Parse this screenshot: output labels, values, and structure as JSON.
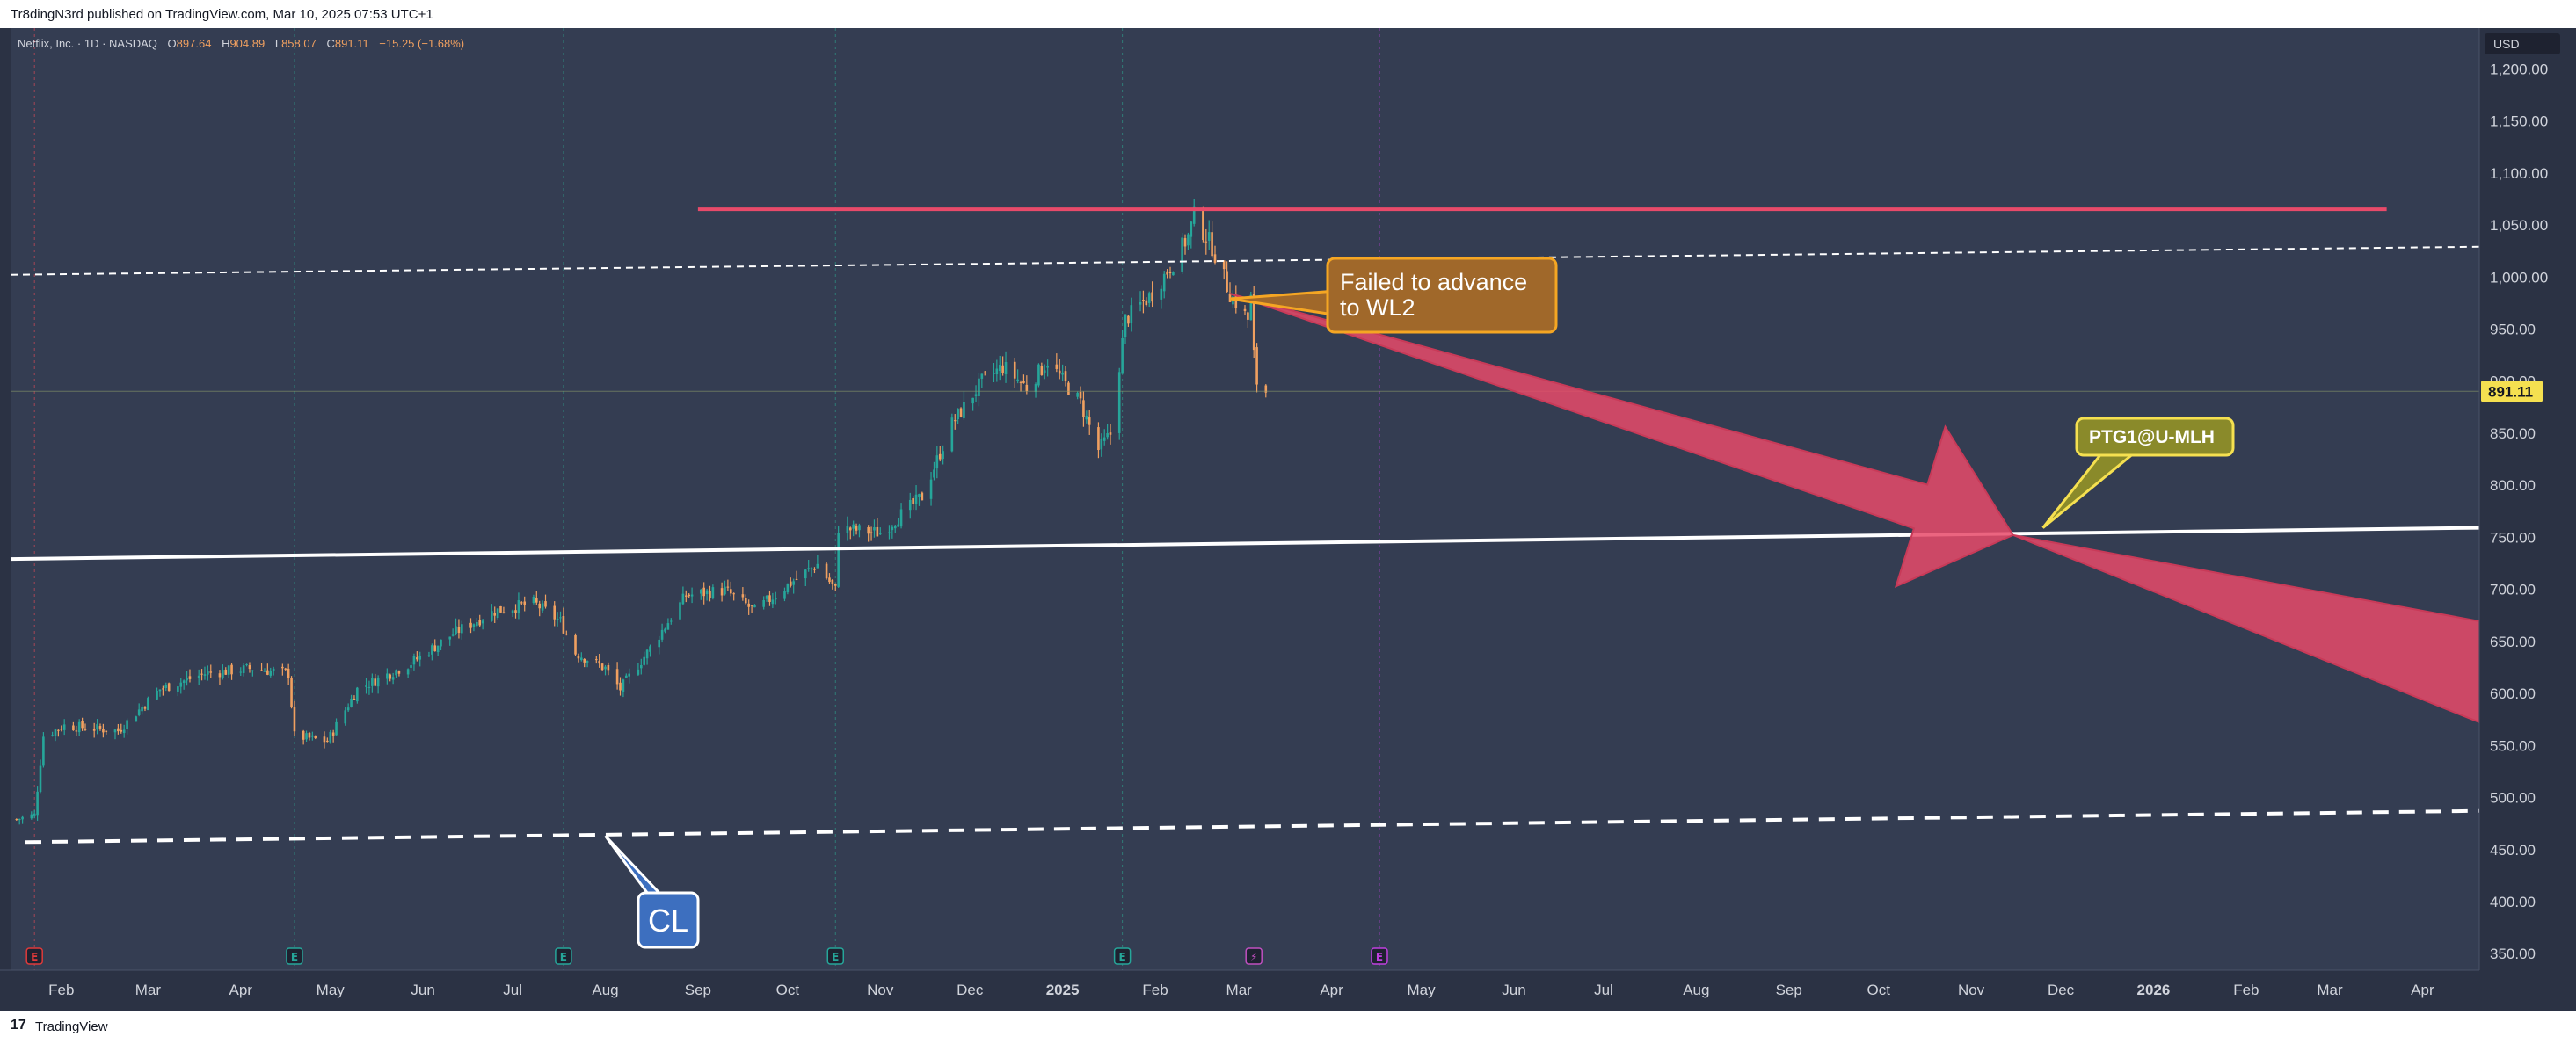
{
  "header": {
    "publisher_line": "Tr8dingN3rd published on TradingView.com, Mar 10, 2025 07:53 UTC+1"
  },
  "legend": {
    "symbol": "Netflix, Inc. · 1D · NASDAQ",
    "o_label": "O",
    "o_value": "897.64",
    "h_label": "H",
    "h_value": "904.89",
    "l_label": "L",
    "l_value": "858.07",
    "c_label": "C",
    "c_value": "891.11",
    "change": "−15.25 (−1.68%)"
  },
  "footer": {
    "brand": "TradingView",
    "logo_glyph": "17"
  },
  "colors": {
    "background": "#343d52",
    "up": "#26a69a",
    "down": "#f0a060",
    "resistance": "#e84a6a",
    "callout_orange_fill": "#a0682a",
    "callout_orange_border": "#f5a623",
    "callout_yellow_fill": "#8a8a2a",
    "callout_yellow_border": "#f5e050",
    "callout_blue_fill": "#3d6fbf"
  },
  "chart_data": {
    "type": "candlestick",
    "currency": "USD",
    "last_price": 891.11,
    "ylim": [
      335,
      1240
    ],
    "y_ticks": [
      350,
      400,
      450,
      500,
      550,
      600,
      650,
      700,
      750,
      800,
      850,
      900,
      950,
      1000,
      1050,
      1100,
      1150,
      1200
    ],
    "y_tick_labels": [
      "350.00",
      "400.00",
      "450.00",
      "500.00",
      "550.00",
      "600.00",
      "650.00",
      "700.00",
      "750.00",
      "800.00",
      "850.00",
      "900.00",
      "950.00",
      "1,000.00",
      "1,050.00",
      "1,100.00",
      "1,150.00",
      "1,200.00"
    ],
    "x_range": [
      "2024-01-15",
      "2026-04-20"
    ],
    "x_ticks": [
      {
        "date": "2024-02-01",
        "label": "Feb"
      },
      {
        "date": "2024-03-01",
        "label": "Mar"
      },
      {
        "date": "2024-04-01",
        "label": "Apr"
      },
      {
        "date": "2024-05-01",
        "label": "May"
      },
      {
        "date": "2024-06-01",
        "label": "Jun"
      },
      {
        "date": "2024-07-01",
        "label": "Jul"
      },
      {
        "date": "2024-08-01",
        "label": "Aug"
      },
      {
        "date": "2024-09-01",
        "label": "Sep"
      },
      {
        "date": "2024-10-01",
        "label": "Oct"
      },
      {
        "date": "2024-11-01",
        "label": "Nov"
      },
      {
        "date": "2024-12-01",
        "label": "Dec"
      },
      {
        "date": "2025-01-01",
        "label": "2025",
        "bold": true
      },
      {
        "date": "2025-02-01",
        "label": "Feb"
      },
      {
        "date": "2025-03-01",
        "label": "Mar"
      },
      {
        "date": "2025-04-01",
        "label": "Apr"
      },
      {
        "date": "2025-05-01",
        "label": "May"
      },
      {
        "date": "2025-06-01",
        "label": "Jun"
      },
      {
        "date": "2025-07-01",
        "label": "Jul"
      },
      {
        "date": "2025-08-01",
        "label": "Aug"
      },
      {
        "date": "2025-09-01",
        "label": "Sep"
      },
      {
        "date": "2025-10-01",
        "label": "Oct"
      },
      {
        "date": "2025-11-01",
        "label": "Nov"
      },
      {
        "date": "2025-12-01",
        "label": "Dec"
      },
      {
        "date": "2026-01-01",
        "label": "2026",
        "bold": true
      },
      {
        "date": "2026-02-01",
        "label": "Feb"
      },
      {
        "date": "2026-03-01",
        "label": "Mar"
      },
      {
        "date": "2026-04-01",
        "label": "Apr"
      }
    ],
    "price_path": [
      [
        "2024-01-17",
        480
      ],
      [
        "2024-01-23",
        484
      ],
      [
        "2024-01-26",
        560
      ],
      [
        "2024-02-02",
        570
      ],
      [
        "2024-02-20",
        565
      ],
      [
        "2024-03-05",
        605
      ],
      [
        "2024-03-20",
        620
      ],
      [
        "2024-04-05",
        625
      ],
      [
        "2024-04-17",
        620
      ],
      [
        "2024-04-19",
        560
      ],
      [
        "2024-04-30",
        555
      ],
      [
        "2024-05-10",
        605
      ],
      [
        "2024-05-28",
        630
      ],
      [
        "2024-06-12",
        660
      ],
      [
        "2024-06-25",
        680
      ],
      [
        "2024-07-08",
        688
      ],
      [
        "2024-07-17",
        670
      ],
      [
        "2024-07-22",
        640
      ],
      [
        "2024-08-01",
        625
      ],
      [
        "2024-08-06",
        605
      ],
      [
        "2024-08-15",
        640
      ],
      [
        "2024-08-28",
        695
      ],
      [
        "2024-09-10",
        700
      ],
      [
        "2024-09-20",
        680
      ],
      [
        "2024-10-01",
        705
      ],
      [
        "2024-10-11",
        725
      ],
      [
        "2024-10-17",
        700
      ],
      [
        "2024-10-18",
        760
      ],
      [
        "2024-11-01",
        755
      ],
      [
        "2024-11-15",
        790
      ],
      [
        "2024-11-25",
        860
      ],
      [
        "2024-12-05",
        900
      ],
      [
        "2024-12-12",
        915
      ],
      [
        "2024-12-20",
        895
      ],
      [
        "2024-12-27",
        920
      ],
      [
        "2025-01-07",
        880
      ],
      [
        "2025-01-13",
        835
      ],
      [
        "2025-01-17",
        850
      ],
      [
        "2025-01-22",
        960
      ],
      [
        "2025-01-31",
        985
      ],
      [
        "2025-02-07",
        1015
      ],
      [
        "2025-02-12",
        1040
      ],
      [
        "2025-02-14",
        1060
      ],
      [
        "2025-02-20",
        1030
      ],
      [
        "2025-02-26",
        985
      ],
      [
        "2025-03-04",
        960
      ],
      [
        "2025-03-05",
        980
      ],
      [
        "2025-03-06",
        925
      ],
      [
        "2025-03-07",
        900
      ],
      [
        "2025-03-10",
        891.11
      ]
    ],
    "vertical_markers": [
      "2024-01-23",
      "2024-04-19",
      "2024-07-18",
      "2024-10-17",
      "2025-01-21",
      "2025-04-17"
    ],
    "event_markers": [
      {
        "date": "2024-01-23",
        "glyph": "E",
        "color": "#e03a3a"
      },
      {
        "date": "2024-04-19",
        "glyph": "E",
        "color": "#26a69a"
      },
      {
        "date": "2024-07-18",
        "glyph": "E",
        "color": "#26a69a"
      },
      {
        "date": "2024-10-17",
        "glyph": "E",
        "color": "#26a69a"
      },
      {
        "date": "2025-01-21",
        "glyph": "E",
        "color": "#26a69a"
      },
      {
        "date": "2025-03-06",
        "glyph": "⚡",
        "color": "#c050c0"
      },
      {
        "date": "2025-04-17",
        "glyph": "E",
        "color": "#c040e0"
      }
    ],
    "lines": [
      {
        "name": "resistance",
        "from": [
          "2024-09-01",
          1066
        ],
        "to": [
          "2026-03-20",
          1066
        ],
        "style": "solid",
        "color": "#e84a6a"
      },
      {
        "name": "wl2",
        "from": [
          "2024-01-15",
          1003
        ],
        "to": [
          "2026-04-20",
          1030
        ],
        "style": "dashed-thin",
        "color": "#ffffff"
      },
      {
        "name": "u-mlh",
        "from": [
          "2024-01-15",
          730
        ],
        "to": [
          "2026-04-20",
          760
        ],
        "style": "solid",
        "color": "#ffffff"
      },
      {
        "name": "cl",
        "from": [
          "2024-01-20",
          458
        ],
        "to": [
          "2026-04-20",
          488
        ],
        "style": "dashed-thick",
        "color": "#ffffff"
      }
    ],
    "annotations": [
      {
        "name": "failed-callout",
        "text_lines": [
          "Failed to advance",
          "to WL2"
        ],
        "anchor": [
          "2025-02-26",
          980
        ]
      },
      {
        "name": "ptg-callout",
        "text_lines": [
          "PTG1@U-MLH"
        ],
        "anchor": [
          "2025-11-25",
          760
        ]
      },
      {
        "name": "cl-callout",
        "text_lines": [
          "CL"
        ],
        "anchor": [
          "2024-08-01",
          464
        ]
      }
    ],
    "projection_arrow": {
      "start": [
        "2025-02-26",
        985
      ],
      "tip": [
        "2025-11-15",
        753
      ],
      "tail_end": [
        "2026-04-20",
        590
      ],
      "color": "#e84a6a"
    }
  }
}
